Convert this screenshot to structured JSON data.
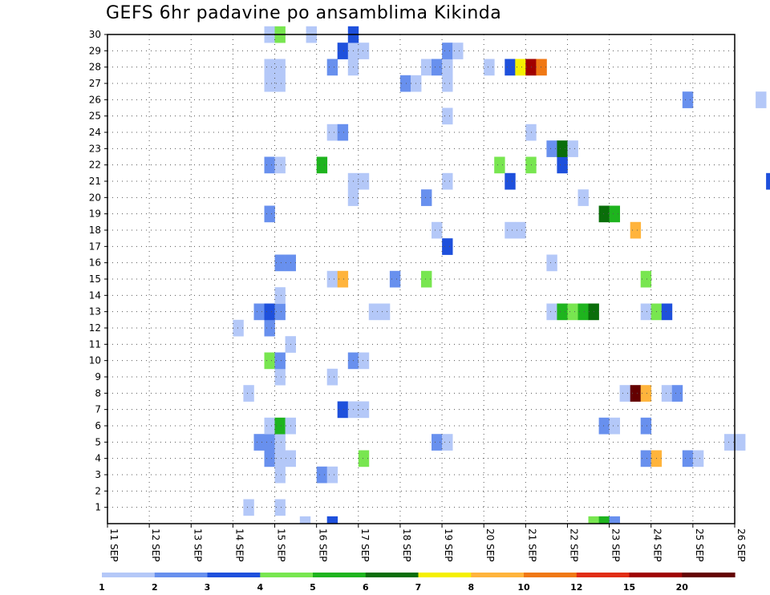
{
  "chart_data": {
    "type": "heatmap",
    "title": "GEFS 6hr padavine po ansamblima Kikinda",
    "xlabel": "",
    "ylabel": "",
    "x_tick_labels": [
      "11 SEP",
      "12 SEP",
      "13 SEP",
      "14 SEP",
      "15 SEP",
      "16 SEP",
      "17 SEP",
      "18 SEP",
      "19 SEP",
      "20 SEP",
      "21 SEP",
      "22 SEP",
      "23 SEP",
      "24 SEP",
      "25 SEP",
      "26 SEP"
    ],
    "y_tick_labels": [
      "1",
      "2",
      "3",
      "4",
      "5",
      "6",
      "7",
      "8",
      "9",
      "10",
      "11",
      "12",
      "13",
      "14",
      "15",
      "16",
      "17",
      "18",
      "19",
      "20",
      "21",
      "22",
      "23",
      "24",
      "25",
      "26",
      "27",
      "28",
      "29",
      "30"
    ],
    "x_range": [
      "11 SEP",
      "26 SEP"
    ],
    "y_range": [
      0,
      30
    ],
    "grid": true,
    "legend_colors": [
      "#b4c8f8",
      "#6890ee",
      "#1e50dc",
      "#78e650",
      "#1eb41e",
      "#0a6e0a",
      "#f5f000",
      "#ffb43c",
      "#f07814",
      "#e12d14",
      "#a00000",
      "#640000"
    ],
    "legend_labels": [
      "1",
      "2",
      "3",
      "4",
      "5",
      "6",
      "7",
      "8",
      "10",
      "12",
      "15",
      "20"
    ],
    "values": [
      [
        0,
        4.6,
        1
      ],
      [
        0,
        5.25,
        3
      ],
      [
        0,
        11.5,
        4
      ],
      [
        0,
        11.75,
        5
      ],
      [
        0,
        12,
        2
      ],
      [
        1,
        3.25,
        1
      ],
      [
        1,
        4,
        1
      ],
      [
        3,
        4,
        1
      ],
      [
        3,
        5,
        2
      ],
      [
        3,
        5.25,
        1
      ],
      [
        4,
        3.75,
        2
      ],
      [
        4,
        4,
        1
      ],
      [
        4,
        4.25,
        1
      ],
      [
        4,
        6,
        4
      ],
      [
        4,
        12.75,
        2
      ],
      [
        4,
        13,
        8
      ],
      [
        4,
        13.75,
        2
      ],
      [
        4,
        14,
        1
      ],
      [
        5,
        3.5,
        2
      ],
      [
        5,
        3.75,
        2
      ],
      [
        5,
        4,
        1
      ],
      [
        5,
        7.75,
        2
      ],
      [
        5,
        8,
        1
      ],
      [
        5,
        14.75,
        1
      ],
      [
        5,
        15,
        1
      ],
      [
        6,
        3.75,
        1
      ],
      [
        6,
        4,
        5
      ],
      [
        6,
        4.25,
        1
      ],
      [
        6,
        11.75,
        2
      ],
      [
        6,
        12,
        1
      ],
      [
        6,
        12.75,
        2
      ],
      [
        7,
        5.5,
        3
      ],
      [
        7,
        5.75,
        1
      ],
      [
        7,
        6,
        1
      ],
      [
        8,
        3.25,
        1
      ],
      [
        8,
        12.25,
        1
      ],
      [
        8,
        12.5,
        12
      ],
      [
        8,
        12.75,
        8
      ],
      [
        8,
        13.25,
        1
      ],
      [
        8,
        13.5,
        2
      ],
      [
        9,
        4,
        1
      ],
      [
        9,
        5.25,
        1
      ],
      [
        10,
        3.75,
        4
      ],
      [
        10,
        4,
        2
      ],
      [
        10,
        5.75,
        2
      ],
      [
        10,
        6,
        1
      ],
      [
        11,
        4.25,
        1
      ],
      [
        12,
        3,
        1
      ],
      [
        12,
        3.75,
        2
      ],
      [
        13,
        3.5,
        2
      ],
      [
        13,
        3.75,
        3
      ],
      [
        13,
        4,
        2
      ],
      [
        13,
        6.25,
        1
      ],
      [
        13,
        6.5,
        1
      ],
      [
        13,
        10.5,
        1
      ],
      [
        13,
        10.75,
        5
      ],
      [
        13,
        11,
        4
      ],
      [
        13,
        11.25,
        5
      ],
      [
        13,
        11.5,
        6
      ],
      [
        13,
        12.75,
        1
      ],
      [
        13,
        13,
        4
      ],
      [
        13,
        13.25,
        3
      ],
      [
        14,
        4,
        1
      ],
      [
        15,
        5.25,
        1
      ],
      [
        15,
        5.5,
        8
      ],
      [
        15,
        6.75,
        2
      ],
      [
        15,
        7.5,
        4
      ],
      [
        15,
        12.75,
        4
      ],
      [
        16,
        4,
        2
      ],
      [
        16,
        4.25,
        2
      ],
      [
        16,
        10.5,
        1
      ],
      [
        17,
        8,
        3
      ],
      [
        18,
        7.75,
        1
      ],
      [
        18,
        9.5,
        1
      ],
      [
        18,
        9.75,
        1
      ],
      [
        18,
        12.5,
        8
      ],
      [
        19,
        3.75,
        2
      ],
      [
        19,
        11.75,
        6
      ],
      [
        19,
        12,
        5
      ],
      [
        20,
        5.75,
        1
      ],
      [
        20,
        7.5,
        2
      ],
      [
        20,
        11.25,
        1
      ],
      [
        21,
        5.75,
        1
      ],
      [
        21,
        6,
        1
      ],
      [
        21,
        8,
        1
      ],
      [
        21,
        9.5,
        3
      ],
      [
        21,
        15.75,
        3
      ],
      [
        22,
        3.75,
        2
      ],
      [
        22,
        4,
        1
      ],
      [
        22,
        5,
        5
      ],
      [
        22,
        9.25,
        4
      ],
      [
        22,
        10,
        4
      ],
      [
        22,
        10.75,
        3
      ],
      [
        23,
        10.5,
        2
      ],
      [
        23,
        10.75,
        6
      ],
      [
        23,
        11,
        1
      ],
      [
        24,
        5.25,
        1
      ],
      [
        24,
        5.5,
        2
      ],
      [
        24,
        10,
        1
      ],
      [
        25,
        8,
        1
      ],
      [
        26,
        13.75,
        2
      ],
      [
        26,
        15.5,
        1
      ],
      [
        27,
        3.75,
        1
      ],
      [
        27,
        4,
        1
      ],
      [
        27,
        7,
        2
      ],
      [
        27,
        7.25,
        1
      ],
      [
        27,
        8,
        1
      ],
      [
        28,
        3.75,
        1
      ],
      [
        28,
        4,
        1
      ],
      [
        28,
        5.25,
        2
      ],
      [
        28,
        5.75,
        1
      ],
      [
        28,
        7.5,
        1
      ],
      [
        28,
        7.75,
        2
      ],
      [
        28,
        8,
        1
      ],
      [
        28,
        9,
        1
      ],
      [
        28,
        9.5,
        3
      ],
      [
        28,
        9.75,
        7
      ],
      [
        28,
        10,
        11
      ],
      [
        28,
        10.25,
        9
      ],
      [
        29,
        5.5,
        3
      ],
      [
        29,
        5.75,
        1
      ],
      [
        29,
        6,
        1
      ],
      [
        29,
        8,
        2
      ],
      [
        29,
        8.25,
        1
      ],
      [
        30,
        3.75,
        1
      ],
      [
        30,
        4,
        4
      ],
      [
        30,
        4.75,
        1
      ],
      [
        30,
        5.75,
        3
      ]
    ]
  }
}
